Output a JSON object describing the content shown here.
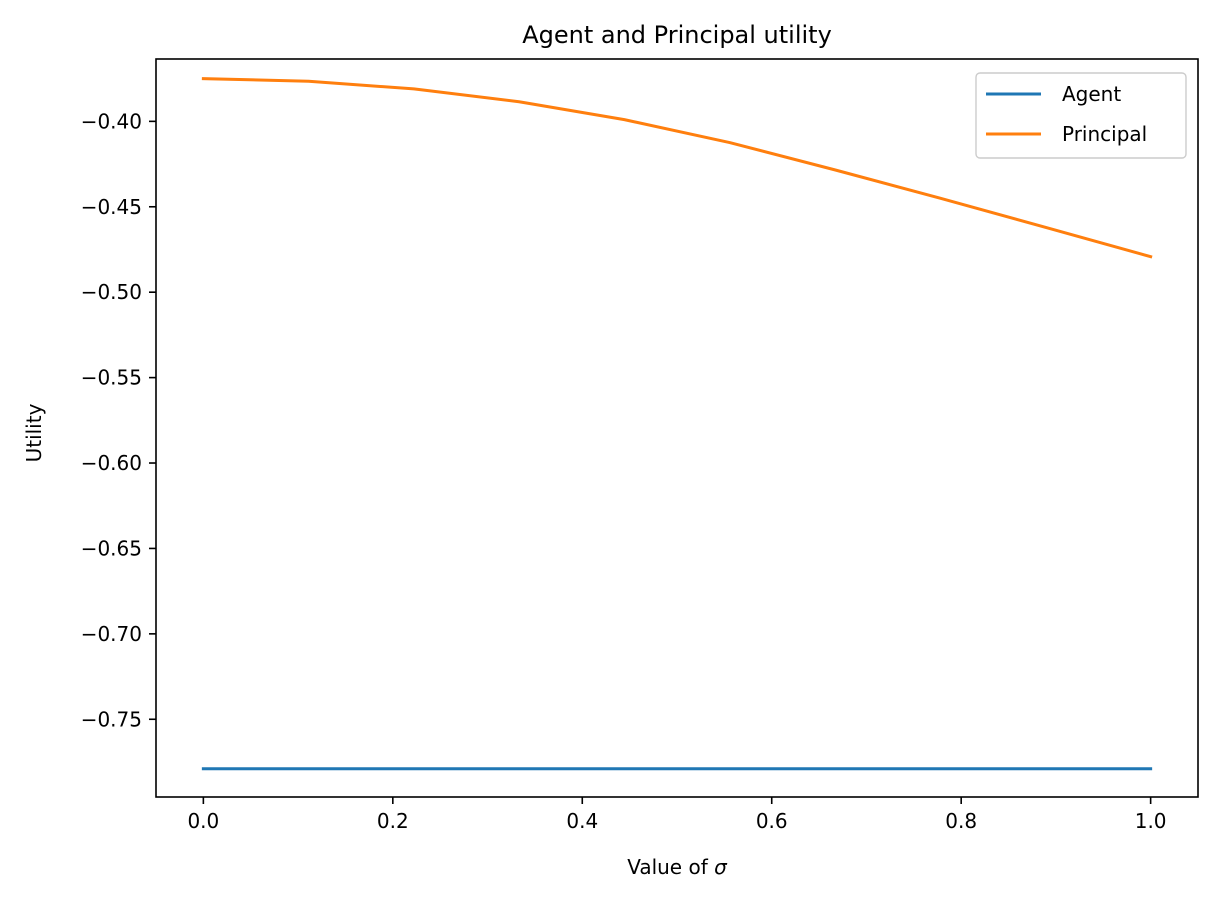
{
  "chart_data": {
    "type": "line",
    "title": "Agent and Principal utility",
    "xlabel": "Value of",
    "xlabel_symbol": "σ",
    "ylabel": "Utility",
    "xlim": [
      -0.05,
      1.05
    ],
    "ylim": [
      -0.7955,
      -0.3635
    ],
    "x_ticks": [
      0.0,
      0.2,
      0.4,
      0.6,
      0.8,
      1.0
    ],
    "x_tick_labels": [
      "0.0",
      "0.2",
      "0.4",
      "0.6",
      "0.8",
      "1.0"
    ],
    "y_ticks": [
      -0.4,
      -0.45,
      -0.5,
      -0.55,
      -0.6,
      -0.65,
      -0.7,
      -0.75
    ],
    "y_tick_labels": [
      "−0.40",
      "−0.45",
      "−0.50",
      "−0.55",
      "−0.60",
      "−0.65",
      "−0.70",
      "−0.75"
    ],
    "grid": false,
    "legend_position": "top-right",
    "x": [
      0.0,
      0.1111,
      0.2222,
      0.3333,
      0.4444,
      0.5556,
      0.6667,
      0.7778,
      0.8889,
      1.0
    ],
    "series": [
      {
        "name": "Agent",
        "color": "#1f77b4",
        "values": [
          -0.779,
          -0.779,
          -0.779,
          -0.779,
          -0.779,
          -0.779,
          -0.779,
          -0.779,
          -0.779,
          -0.779
        ]
      },
      {
        "name": "Principal",
        "color": "#ff7f0e",
        "values": [
          -0.375,
          -0.3765,
          -0.381,
          -0.3885,
          -0.399,
          -0.4124,
          -0.4284,
          -0.445,
          -0.462,
          -0.4792
        ]
      }
    ]
  }
}
